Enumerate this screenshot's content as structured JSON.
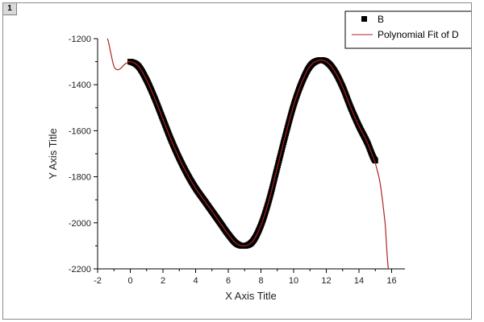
{
  "window": {
    "layer_label": "1"
  },
  "chart_data": {
    "type": "scatter",
    "xlabel": "X Axis Title",
    "ylabel": "Y Axis Title",
    "xlim": [
      -2,
      17
    ],
    "ylim": [
      -2200,
      -1200
    ],
    "x_ticks": [
      -2,
      0,
      2,
      4,
      6,
      8,
      10,
      12,
      14,
      16
    ],
    "y_ticks": [
      -2200,
      -2000,
      -1800,
      -1600,
      -1400,
      -1200
    ],
    "legend": {
      "placement": "top-right"
    },
    "series": [
      {
        "name": "B",
        "kind": "scatter",
        "color": "#000000",
        "x": [
          0.0,
          0.5,
          1.0,
          1.5,
          2.0,
          2.5,
          3.0,
          3.5,
          4.0,
          4.5,
          5.0,
          5.5,
          6.0,
          6.5,
          7.0,
          7.5,
          8.0,
          8.5,
          9.0,
          9.5,
          10.0,
          10.5,
          11.0,
          11.5,
          12.0,
          12.5,
          13.0,
          13.5,
          14.0,
          14.5,
          15.0
        ],
        "y": [
          -1300,
          -1320,
          -1380,
          -1460,
          -1550,
          -1640,
          -1720,
          -1790,
          -1850,
          -1900,
          -1950,
          -2000,
          -2050,
          -2090,
          -2100,
          -2080,
          -2010,
          -1900,
          -1760,
          -1620,
          -1490,
          -1390,
          -1320,
          -1295,
          -1300,
          -1340,
          -1410,
          -1500,
          -1580,
          -1650,
          -1730
        ]
      },
      {
        "name": "Polynomial Fit of D",
        "kind": "line",
        "color": "#b22222",
        "x": [
          -1.4,
          -1.2,
          -1.0,
          -0.8,
          -0.6,
          -0.4,
          -0.2,
          0.0,
          0.5,
          1.0,
          1.5,
          2.0,
          2.5,
          3.0,
          3.5,
          4.0,
          4.5,
          5.0,
          5.5,
          6.0,
          6.5,
          7.0,
          7.5,
          8.0,
          8.5,
          9.0,
          9.5,
          10.0,
          10.5,
          11.0,
          11.5,
          12.0,
          12.5,
          13.0,
          13.5,
          14.0,
          14.5,
          15.0,
          15.3,
          15.6,
          15.8
        ],
        "y": [
          -1200,
          -1260,
          -1320,
          -1335,
          -1330,
          -1315,
          -1305,
          -1300,
          -1320,
          -1380,
          -1460,
          -1550,
          -1640,
          -1720,
          -1790,
          -1850,
          -1900,
          -1950,
          -2000,
          -2050,
          -2090,
          -2100,
          -2080,
          -2010,
          -1900,
          -1760,
          -1620,
          -1490,
          -1390,
          -1320,
          -1295,
          -1300,
          -1340,
          -1410,
          -1500,
          -1580,
          -1650,
          -1740,
          -1830,
          -2000,
          -2200
        ]
      }
    ]
  }
}
